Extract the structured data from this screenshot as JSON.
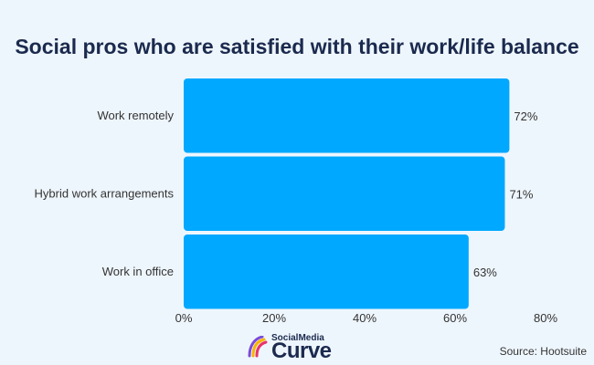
{
  "chart_data": {
    "type": "bar",
    "orientation": "horizontal",
    "title": "Social pros who are satisfied with their work/life balance",
    "categories": [
      "Work remotely",
      "Hybrid work arrangements",
      "Work in office"
    ],
    "values": [
      72,
      71,
      63
    ],
    "value_labels": [
      "72%",
      "71%",
      "63%"
    ],
    "xlim": [
      0,
      80
    ],
    "x_ticks": [
      0,
      20,
      40,
      60,
      80
    ],
    "x_tick_labels": [
      "0%",
      "20%",
      "40%",
      "60%",
      "80%"
    ],
    "grid": false,
    "bar_color": "#00a8ff"
  },
  "logo": {
    "small_text": "SocialMedia",
    "big_text": "Curve"
  },
  "source": "Source: Hootsuite"
}
